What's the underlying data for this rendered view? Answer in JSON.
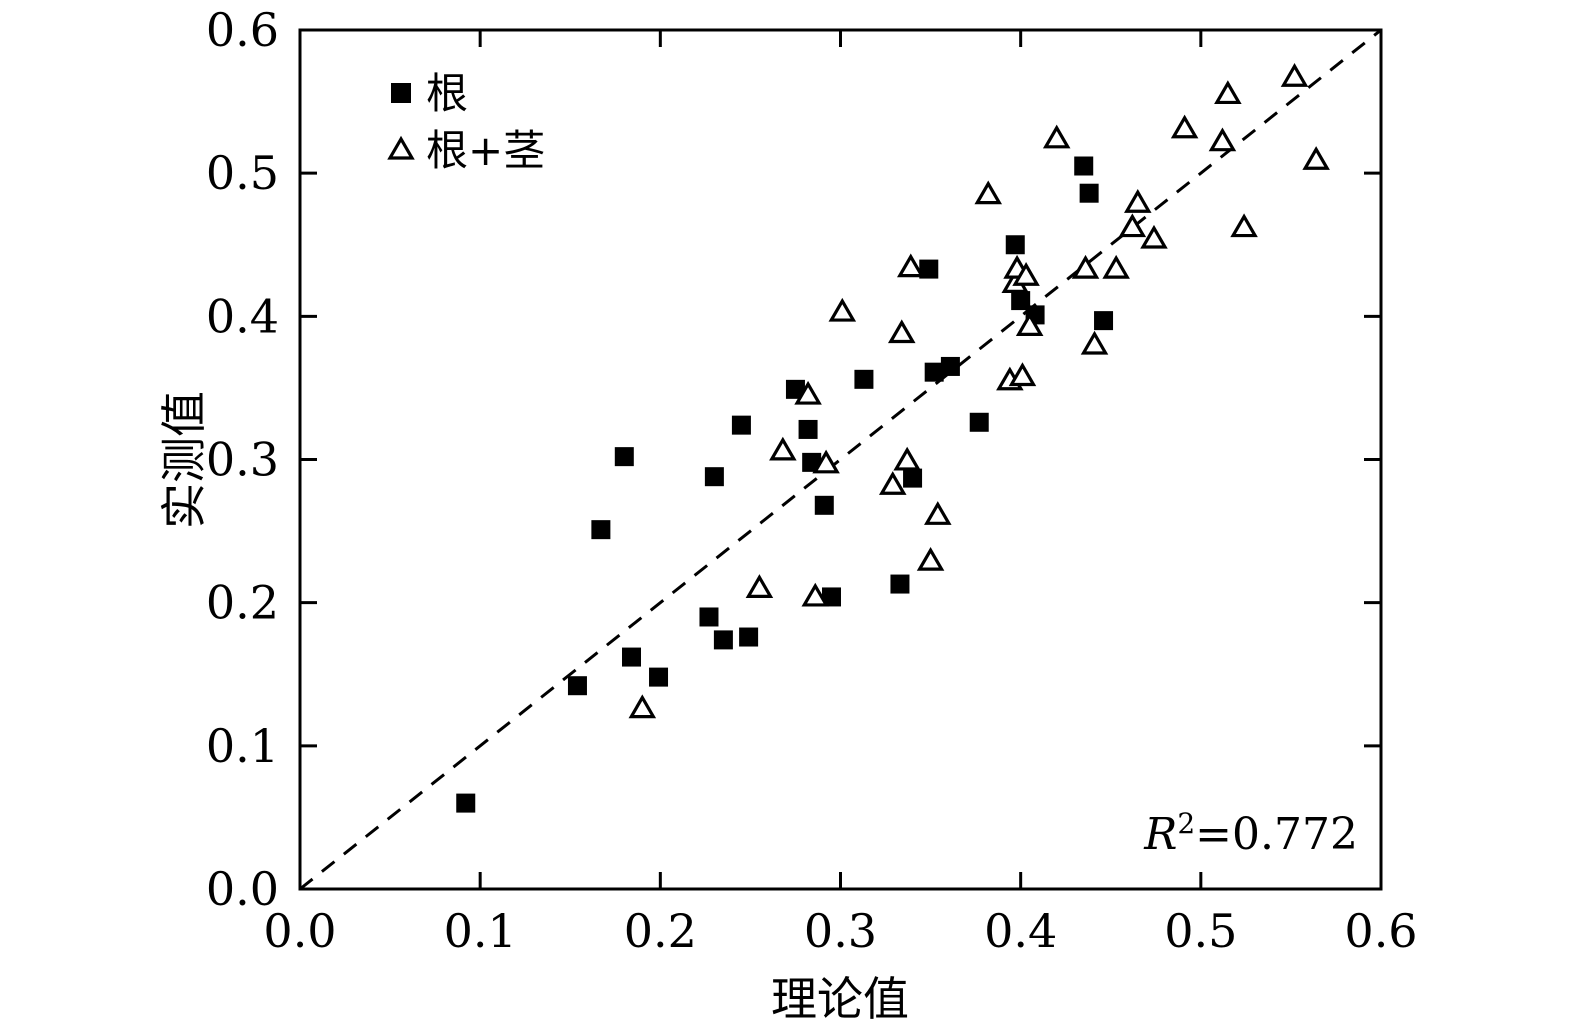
{
  "chart_data": {
    "type": "scatter",
    "xlabel": "理论值",
    "ylabel": "实测值",
    "xlim": [
      0.0,
      0.6
    ],
    "ylim": [
      0.0,
      0.6
    ],
    "xticks": [
      "0.0",
      "0.1",
      "0.2",
      "0.3",
      "0.4",
      "0.5",
      "0.6"
    ],
    "yticks": [
      "0.0",
      "0.1",
      "0.2",
      "0.3",
      "0.4",
      "0.5",
      "0.6"
    ],
    "grid": false,
    "legend_position": "top-left",
    "reference_line": {
      "style": "dashed",
      "from": [
        0.0,
        0.0
      ],
      "to": [
        0.6,
        0.6
      ]
    },
    "annotation": {
      "r_letter": "R",
      "r_sup": "2",
      "r_value": "=0.772"
    },
    "series": [
      {
        "name": "根",
        "marker": "filled-square",
        "points": [
          [
            0.092,
            0.06
          ],
          [
            0.154,
            0.142
          ],
          [
            0.167,
            0.251
          ],
          [
            0.18,
            0.302
          ],
          [
            0.184,
            0.162
          ],
          [
            0.199,
            0.148
          ],
          [
            0.227,
            0.19
          ],
          [
            0.23,
            0.288
          ],
          [
            0.235,
            0.174
          ],
          [
            0.245,
            0.324
          ],
          [
            0.249,
            0.176
          ],
          [
            0.275,
            0.349
          ],
          [
            0.282,
            0.321
          ],
          [
            0.284,
            0.298
          ],
          [
            0.291,
            0.268
          ],
          [
            0.295,
            0.204
          ],
          [
            0.313,
            0.356
          ],
          [
            0.333,
            0.213
          ],
          [
            0.34,
            0.287
          ],
          [
            0.349,
            0.433
          ],
          [
            0.352,
            0.361
          ],
          [
            0.361,
            0.365
          ],
          [
            0.377,
            0.326
          ],
          [
            0.397,
            0.45
          ],
          [
            0.4,
            0.411
          ],
          [
            0.408,
            0.401
          ],
          [
            0.435,
            0.505
          ],
          [
            0.438,
            0.486
          ],
          [
            0.446,
            0.397
          ]
        ]
      },
      {
        "name": "根+茎",
        "marker": "open-triangle",
        "points": [
          [
            0.19,
            0.126
          ],
          [
            0.255,
            0.21
          ],
          [
            0.268,
            0.306
          ],
          [
            0.282,
            0.345
          ],
          [
            0.286,
            0.204
          ],
          [
            0.292,
            0.297
          ],
          [
            0.301,
            0.403
          ],
          [
            0.329,
            0.282
          ],
          [
            0.334,
            0.388
          ],
          [
            0.337,
            0.299
          ],
          [
            0.339,
            0.434
          ],
          [
            0.35,
            0.229
          ],
          [
            0.354,
            0.261
          ],
          [
            0.382,
            0.485
          ],
          [
            0.394,
            0.355
          ],
          [
            0.397,
            0.423
          ],
          [
            0.398,
            0.433
          ],
          [
            0.401,
            0.358
          ],
          [
            0.403,
            0.428
          ],
          [
            0.405,
            0.393
          ],
          [
            0.42,
            0.524
          ],
          [
            0.436,
            0.433
          ],
          [
            0.441,
            0.38
          ],
          [
            0.453,
            0.433
          ],
          [
            0.462,
            0.462
          ],
          [
            0.465,
            0.479
          ],
          [
            0.474,
            0.454
          ],
          [
            0.491,
            0.531
          ],
          [
            0.512,
            0.522
          ],
          [
            0.515,
            0.555
          ],
          [
            0.524,
            0.462
          ],
          [
            0.552,
            0.567
          ],
          [
            0.564,
            0.509
          ]
        ]
      }
    ]
  }
}
